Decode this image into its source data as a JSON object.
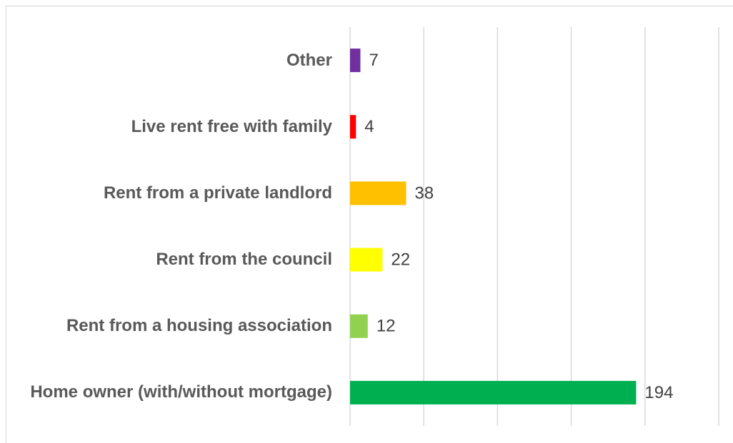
{
  "chart_data": {
    "type": "bar",
    "orientation": "horizontal",
    "categories": [
      "Home owner (with/without mortgage)",
      "Rent from a housing association",
      "Rent from the council",
      "Rent from a private landlord",
      "Live rent free with family",
      "Other"
    ],
    "values": [
      194,
      12,
      22,
      38,
      4,
      7
    ],
    "colors": [
      "#00b050",
      "#92d050",
      "#ffff00",
      "#ffc000",
      "#ff0000",
      "#7030a0"
    ],
    "xlim": [
      0,
      250
    ],
    "xticks": [
      0,
      50,
      100,
      150,
      200,
      250
    ],
    "grid": true
  }
}
